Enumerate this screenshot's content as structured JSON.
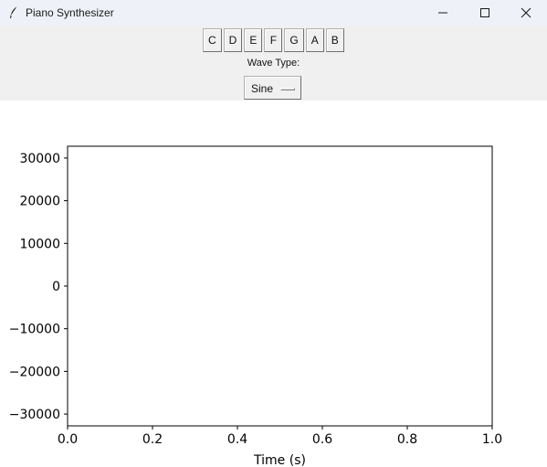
{
  "window": {
    "title": "Piano Synthesizer",
    "icon": "feather-icon",
    "controls": [
      "minimize-icon",
      "maximize-icon",
      "close-icon"
    ]
  },
  "keys": [
    "C",
    "D",
    "E",
    "F",
    "G",
    "A",
    "B"
  ],
  "wave": {
    "label": "Wave Type:",
    "selected": "Sine"
  },
  "chart_data": {
    "type": "line",
    "xlabel": "Time (s)",
    "ylabel": "",
    "xlim": [
      0.0,
      1.0
    ],
    "ylim": [
      -32768,
      32767
    ],
    "xticks": [
      0.0,
      0.2,
      0.4,
      0.6,
      0.8,
      1.0
    ],
    "xtick_labels": [
      "0.0",
      "0.2",
      "0.4",
      "0.6",
      "0.8",
      "1.0"
    ],
    "yticks": [
      30000,
      20000,
      10000,
      0,
      -10000,
      -20000,
      -30000
    ],
    "ytick_labels": [
      "30000",
      "20000",
      "10000",
      "0",
      "−10000",
      "−20000",
      "−30000"
    ],
    "series": [],
    "grid": false
  }
}
